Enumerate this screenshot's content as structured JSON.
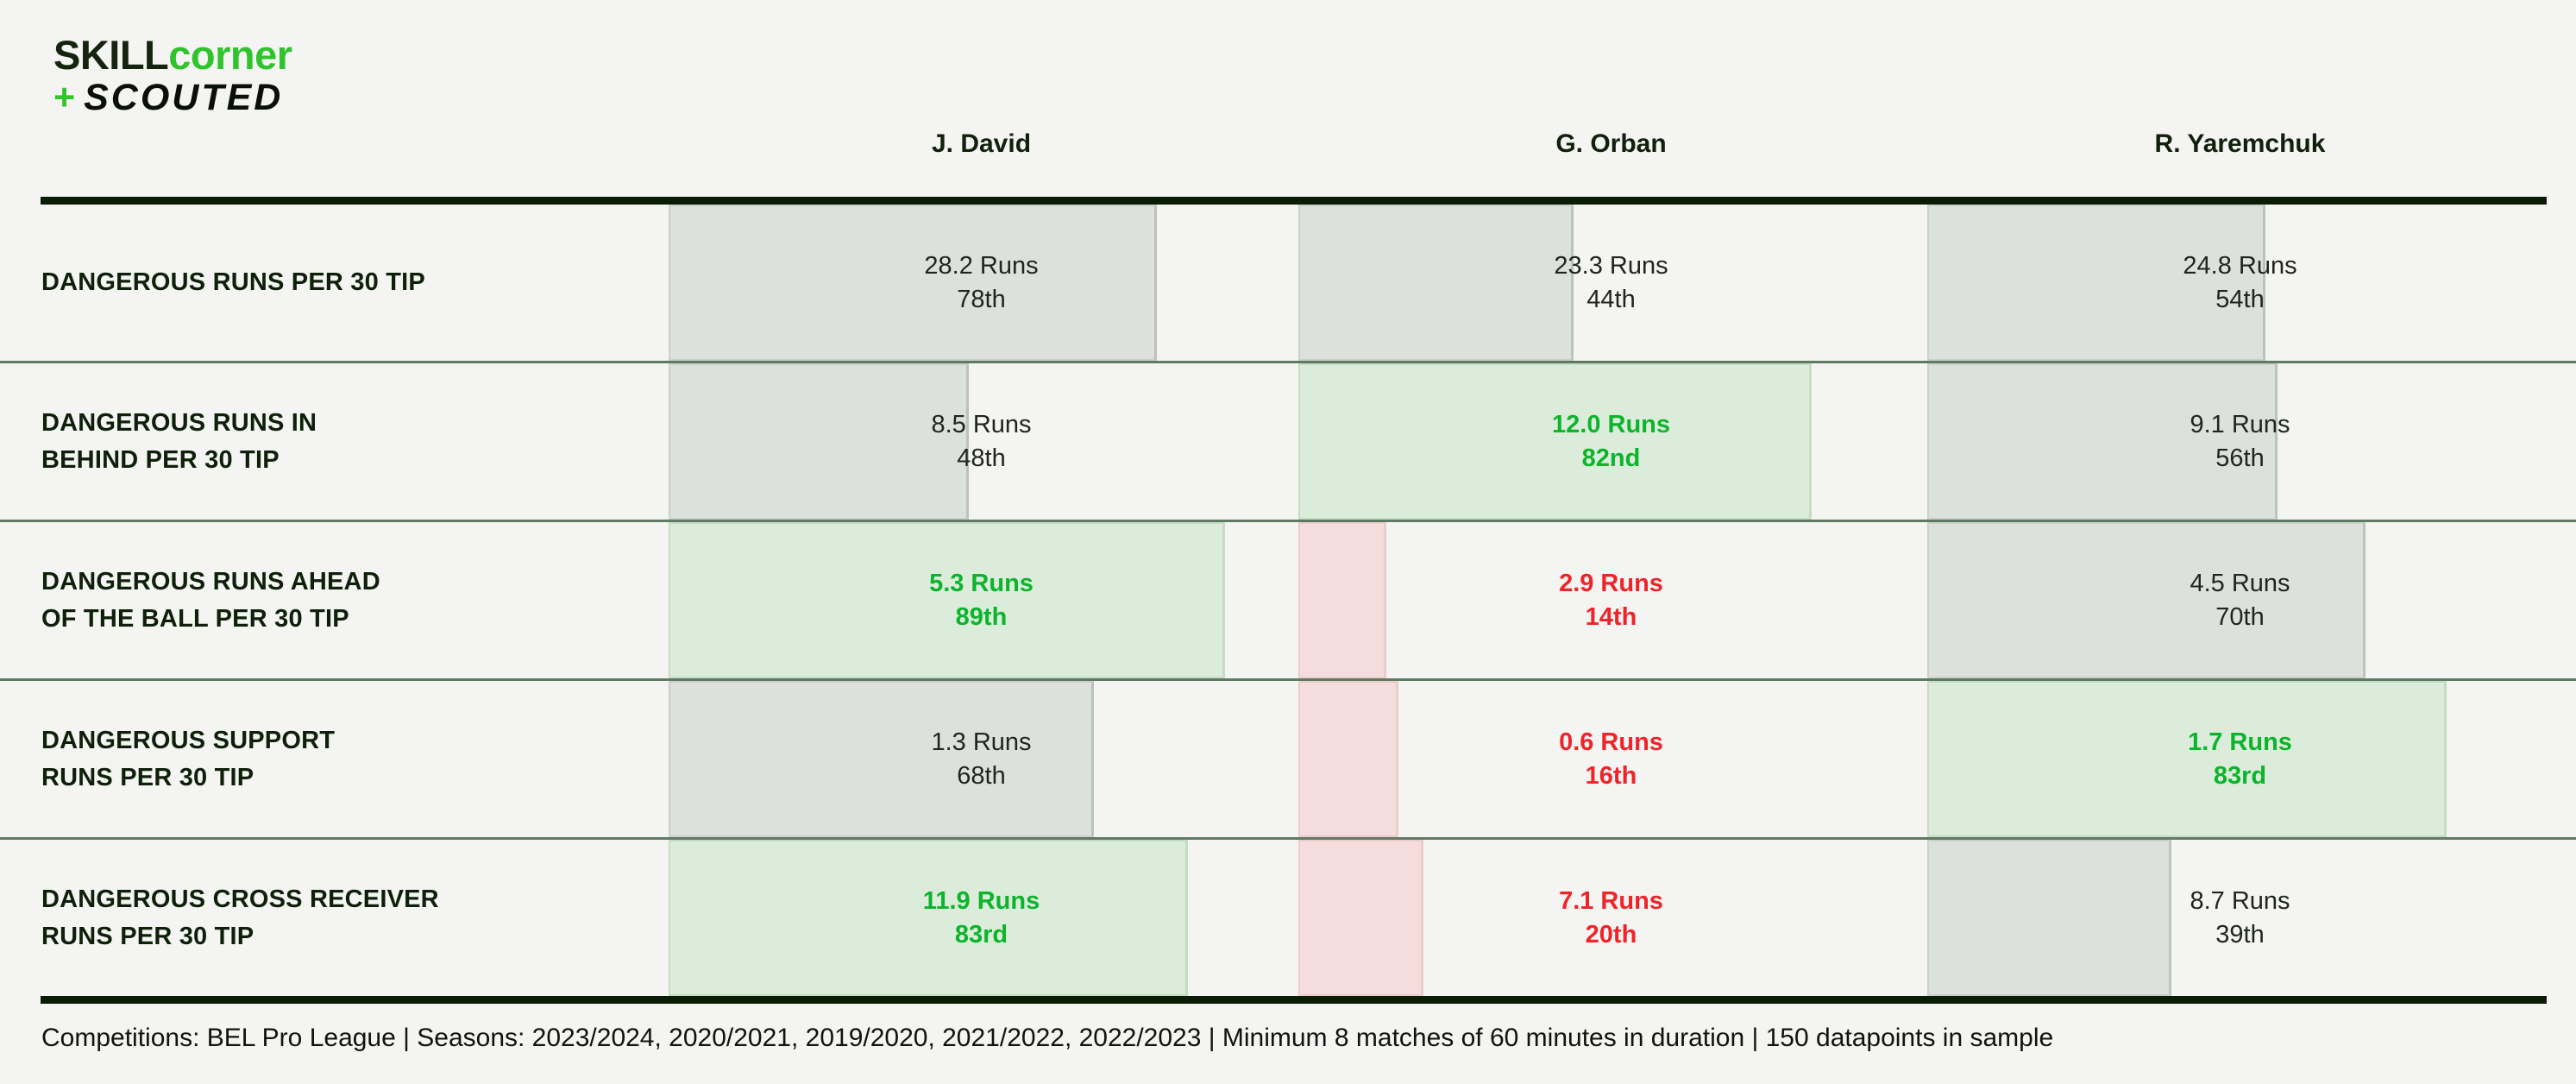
{
  "brand": {
    "skill": "SKILL",
    "corner": "corner",
    "plus": "+",
    "scouted": "SCOUTED"
  },
  "players": [
    "J. David",
    "G. Orban",
    "R. Yaremchuk"
  ],
  "footer": {
    "text": "Competitions: BEL Pro League | Seasons: 2023/2024, 2020/2021, 2019/2020, 2021/2022, 2022/2023 | Minimum 8 matches of 60 minutes in duration | 150 datapoints in sample"
  },
  "colors": {
    "background": "#f4f4f3",
    "accent_green": "#2fc42c",
    "good_text": "#0cb42c",
    "bad_text": "#ee2428",
    "neutral_bar": "#dde1dc",
    "good_bar": "#dcecda",
    "bad_bar": "#f6dddd",
    "separator": "#5f7a63",
    "rule": "#0a1c06"
  },
  "chart_data": {
    "type": "bar",
    "orientation": "horizontal",
    "unit": "Runs per 30 TIP",
    "note": "bar width = percentile as % of column width; green = high percentile, red = low percentile",
    "columns": [
      "J. David",
      "G. Orban",
      "R. Yaremchuk"
    ],
    "metrics": [
      {
        "label": "DANGEROUS RUNS PER 30 TIP",
        "cells": [
          {
            "value_label": "28.2 Runs",
            "percentile_label": "78th",
            "percentile": 78,
            "tone": "neutral"
          },
          {
            "value_label": "23.3 Runs",
            "percentile_label": "44th",
            "percentile": 44,
            "tone": "neutral"
          },
          {
            "value_label": "24.8 Runs",
            "percentile_label": "54th",
            "percentile": 54,
            "tone": "neutral"
          }
        ]
      },
      {
        "label": "DANGEROUS RUNS IN\nBEHIND PER 30 TIP",
        "cells": [
          {
            "value_label": "8.5 Runs",
            "percentile_label": "48th",
            "percentile": 48,
            "tone": "neutral"
          },
          {
            "value_label": "12.0 Runs",
            "percentile_label": "82nd",
            "percentile": 82,
            "tone": "good"
          },
          {
            "value_label": "9.1 Runs",
            "percentile_label": "56th",
            "percentile": 56,
            "tone": "neutral"
          }
        ]
      },
      {
        "label": "DANGEROUS RUNS AHEAD\nOF THE BALL PER 30 TIP",
        "cells": [
          {
            "value_label": "5.3 Runs",
            "percentile_label": "89th",
            "percentile": 89,
            "tone": "good"
          },
          {
            "value_label": "2.9 Runs",
            "percentile_label": "14th",
            "percentile": 14,
            "tone": "bad"
          },
          {
            "value_label": "4.5 Runs",
            "percentile_label": "70th",
            "percentile": 70,
            "tone": "neutral"
          }
        ]
      },
      {
        "label": "DANGEROUS SUPPORT\nRUNS PER 30 TIP",
        "cells": [
          {
            "value_label": "1.3 Runs",
            "percentile_label": "68th",
            "percentile": 68,
            "tone": "neutral"
          },
          {
            "value_label": "0.6 Runs",
            "percentile_label": "16th",
            "percentile": 16,
            "tone": "bad"
          },
          {
            "value_label": "1.7 Runs",
            "percentile_label": "83rd",
            "percentile": 83,
            "tone": "good"
          }
        ]
      },
      {
        "label": "DANGEROUS CROSS RECEIVER\nRUNS PER 30 TIP",
        "cells": [
          {
            "value_label": "11.9 Runs",
            "percentile_label": "83rd",
            "percentile": 83,
            "tone": "good"
          },
          {
            "value_label": "7.1 Runs",
            "percentile_label": "20th",
            "percentile": 20,
            "tone": "bad"
          },
          {
            "value_label": "8.7 Runs",
            "percentile_label": "39th",
            "percentile": 39,
            "tone": "neutral"
          }
        ]
      }
    ]
  }
}
